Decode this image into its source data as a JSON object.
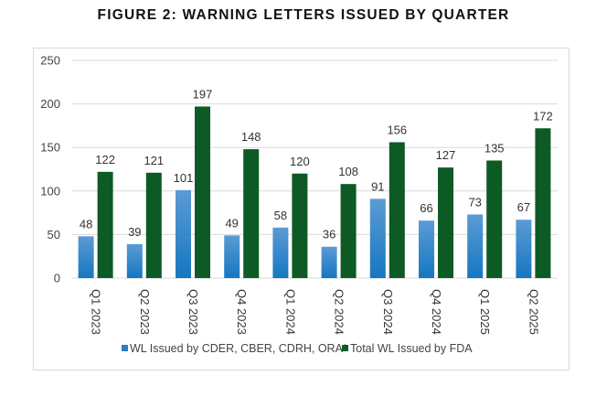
{
  "chart_data": {
    "type": "bar",
    "title": "FIGURE 2: WARNING LETTERS ISSUED BY QUARTER",
    "categories": [
      "Q1 2023",
      "Q2 2023",
      "Q3 2023",
      "Q4 2023",
      "Q1 2024",
      "Q2 2024",
      "Q3 2024",
      "Q4 2024",
      "Q1 2025",
      "Q2 2025"
    ],
    "series": [
      {
        "name": "WL Issued by CDER, CBER, CDRH, ORA*",
        "color": "#2e7dc0",
        "values": [
          48,
          39,
          101,
          49,
          58,
          36,
          91,
          66,
          73,
          67
        ]
      },
      {
        "name": "Total WL Issued by FDA",
        "color": "#0e5a25",
        "values": [
          122,
          121,
          197,
          148,
          120,
          108,
          156,
          127,
          135,
          172
        ]
      }
    ],
    "xlabel": "",
    "ylabel": "",
    "ylim": [
      0,
      250
    ],
    "yticks": [
      0,
      50,
      100,
      150,
      200,
      250
    ],
    "grid": true,
    "legend": "bottom"
  }
}
